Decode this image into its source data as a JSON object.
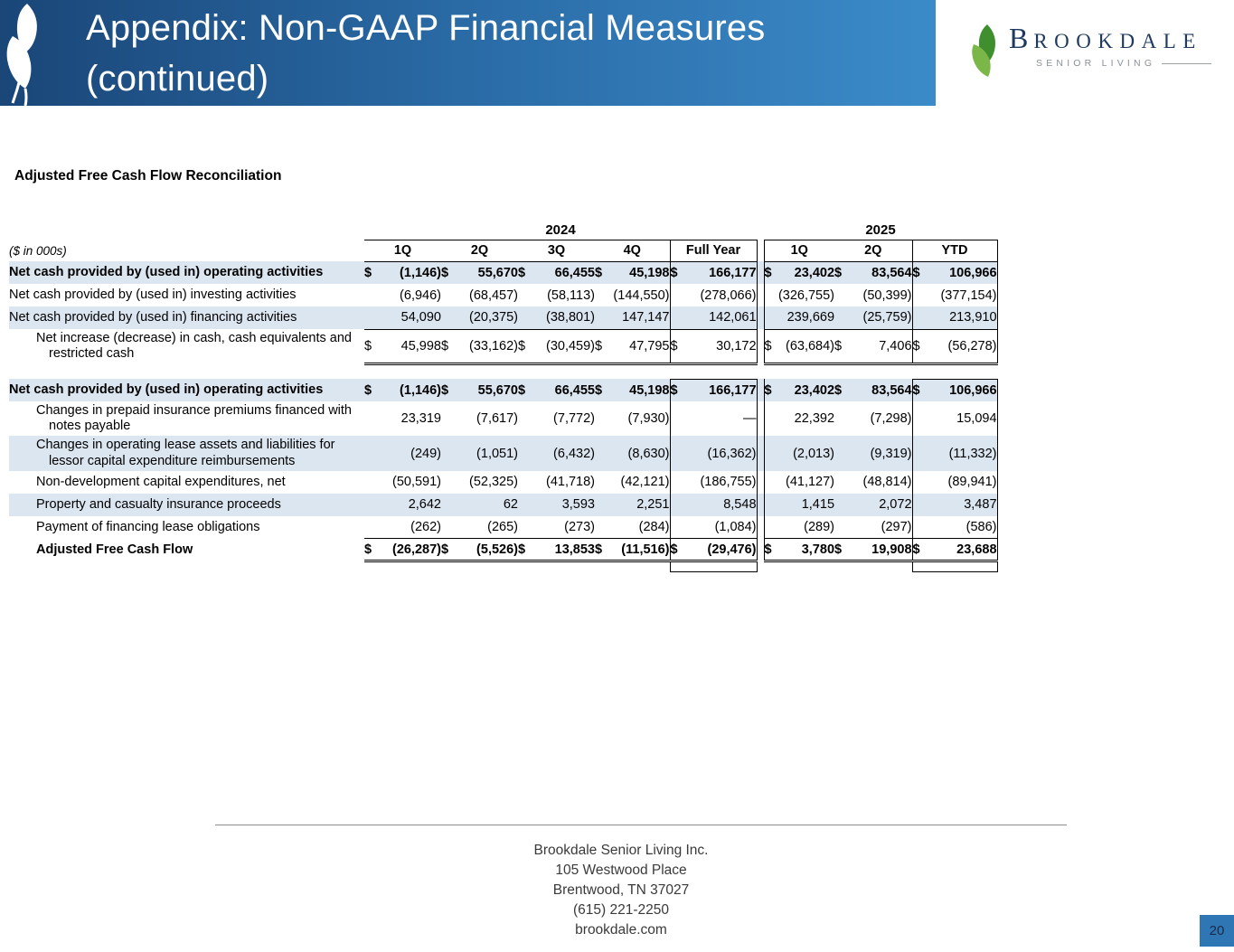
{
  "slide": {
    "title_line1": "Appendix: Non-GAAP Financial Measures",
    "title_line2": "(continued)",
    "page_number": "20"
  },
  "logo": {
    "brand_initial": "B",
    "brand_rest": "ROOKDALE",
    "tagline": "SENIOR LIVING"
  },
  "section_title": "Adjusted Free Cash Flow Reconciliation",
  "table": {
    "units_label": "($ in 000s)",
    "year_groups": [
      {
        "label": "2024"
      },
      {
        "label": "2025"
      }
    ],
    "columns": [
      "1Q",
      "2Q",
      "3Q",
      "4Q",
      "Full Year",
      "1Q",
      "2Q",
      "YTD"
    ],
    "rows": [
      {
        "label": "Net cash provided by (used in) operating activities",
        "bold": true,
        "shaded": true,
        "indent": false,
        "cells": [
          [
            "$",
            "(1,146)"
          ],
          [
            "$",
            "55,670"
          ],
          [
            "$",
            "66,455"
          ],
          [
            "$",
            "45,198"
          ],
          [
            "$",
            "166,177"
          ],
          [
            "$",
            "23,402"
          ],
          [
            "$",
            "83,564"
          ],
          [
            "$",
            "106,966"
          ]
        ]
      },
      {
        "label": "Net cash provided by (used in) investing activities",
        "bold": false,
        "shaded": false,
        "indent": false,
        "cells": [
          [
            "",
            "(6,946)"
          ],
          [
            "",
            "(68,457)"
          ],
          [
            "",
            "(58,113)"
          ],
          [
            "",
            "(144,550)"
          ],
          [
            "",
            "(278,066)"
          ],
          [
            "",
            "(326,755)"
          ],
          [
            "",
            "(50,399)"
          ],
          [
            "",
            "(377,154)"
          ]
        ]
      },
      {
        "label": "Net cash provided by (used in) financing activities",
        "bold": false,
        "shaded": true,
        "indent": false,
        "cells": [
          [
            "",
            "54,090"
          ],
          [
            "",
            "(20,375)"
          ],
          [
            "",
            "(38,801)"
          ],
          [
            "",
            "147,147"
          ],
          [
            "",
            "142,061"
          ],
          [
            "",
            "239,669"
          ],
          [
            "",
            "(25,759)"
          ],
          [
            "",
            "213,910"
          ]
        ]
      },
      {
        "label": "Net increase (decrease) in cash, cash equivalents and restricted cash",
        "bold": false,
        "shaded": false,
        "indent": true,
        "topline": true,
        "dbl": true,
        "cells": [
          [
            "$",
            "45,998"
          ],
          [
            "$",
            "(33,162)"
          ],
          [
            "$",
            "(30,459)"
          ],
          [
            "$",
            "47,795"
          ],
          [
            "$",
            "30,172"
          ],
          [
            "$",
            "(63,684)"
          ],
          [
            "$",
            "7,406"
          ],
          [
            "$",
            "(56,278)"
          ]
        ]
      },
      {
        "type": "spacer"
      },
      {
        "label": "Net cash provided by (used in) operating activities",
        "bold": true,
        "shaded": true,
        "indent": false,
        "cells": [
          [
            "$",
            "(1,146)"
          ],
          [
            "$",
            "55,670"
          ],
          [
            "$",
            "66,455"
          ],
          [
            "$",
            "45,198"
          ],
          [
            "$",
            "166,177"
          ],
          [
            "$",
            "23,402"
          ],
          [
            "$",
            "83,564"
          ],
          [
            "$",
            "106,966"
          ]
        ]
      },
      {
        "label": "Changes in prepaid insurance premiums financed with notes payable",
        "bold": false,
        "shaded": false,
        "indent": true,
        "cells": [
          [
            "",
            "23,319"
          ],
          [
            "",
            "(7,617)"
          ],
          [
            "",
            "(7,772)"
          ],
          [
            "",
            "(7,930)"
          ],
          [
            "",
            "—"
          ],
          [
            "",
            "22,392"
          ],
          [
            "",
            "(7,298)"
          ],
          [
            "",
            "15,094"
          ]
        ]
      },
      {
        "label": "Changes in operating lease assets and liabilities for lessor capital expenditure reimbursements",
        "bold": false,
        "shaded": true,
        "indent": true,
        "cells": [
          [
            "",
            "(249)"
          ],
          [
            "",
            "(1,051)"
          ],
          [
            "",
            "(6,432)"
          ],
          [
            "",
            "(8,630)"
          ],
          [
            "",
            "(16,362)"
          ],
          [
            "",
            "(2,013)"
          ],
          [
            "",
            "(9,319)"
          ],
          [
            "",
            "(11,332)"
          ]
        ]
      },
      {
        "label": "Non-development capital expenditures, net",
        "bold": false,
        "shaded": false,
        "indent": true,
        "cells": [
          [
            "",
            "(50,591)"
          ],
          [
            "",
            "(52,325)"
          ],
          [
            "",
            "(41,718)"
          ],
          [
            "",
            "(42,121)"
          ],
          [
            "",
            "(186,755)"
          ],
          [
            "",
            "(41,127)"
          ],
          [
            "",
            "(48,814)"
          ],
          [
            "",
            "(89,941)"
          ]
        ]
      },
      {
        "label": "Property and casualty insurance proceeds",
        "bold": false,
        "shaded": true,
        "indent": true,
        "cells": [
          [
            "",
            "2,642"
          ],
          [
            "",
            "62"
          ],
          [
            "",
            "3,593"
          ],
          [
            "",
            "2,251"
          ],
          [
            "",
            "8,548"
          ],
          [
            "",
            "1,415"
          ],
          [
            "",
            "2,072"
          ],
          [
            "",
            "3,487"
          ]
        ]
      },
      {
        "label": "Payment of financing lease obligations",
        "bold": false,
        "shaded": false,
        "indent": true,
        "cells": [
          [
            "",
            "(262)"
          ],
          [
            "",
            "(265)"
          ],
          [
            "",
            "(273)"
          ],
          [
            "",
            "(284)"
          ],
          [
            "",
            "(1,084)"
          ],
          [
            "",
            "(289)"
          ],
          [
            "",
            "(297)"
          ],
          [
            "",
            "(586)"
          ]
        ]
      },
      {
        "label": "Adjusted Free Cash Flow",
        "bold": true,
        "shaded": false,
        "indent": true,
        "topline": true,
        "dbl": true,
        "cells": [
          [
            "$",
            "(26,287)"
          ],
          [
            "$",
            "(5,526)"
          ],
          [
            "$",
            "13,853"
          ],
          [
            "$",
            "(11,516)"
          ],
          [
            "$",
            "(29,476)"
          ],
          [
            "$",
            "3,780"
          ],
          [
            "$",
            "19,908"
          ],
          [
            "$",
            "23,688"
          ]
        ]
      },
      {
        "type": "boxfoot"
      }
    ]
  },
  "footer": {
    "lines": [
      "Brookdale Senior Living Inc.",
      "105 Westwood Place",
      "Brentwood, TN 37027",
      "(615) 221-2250",
      "brookdale.com"
    ]
  }
}
